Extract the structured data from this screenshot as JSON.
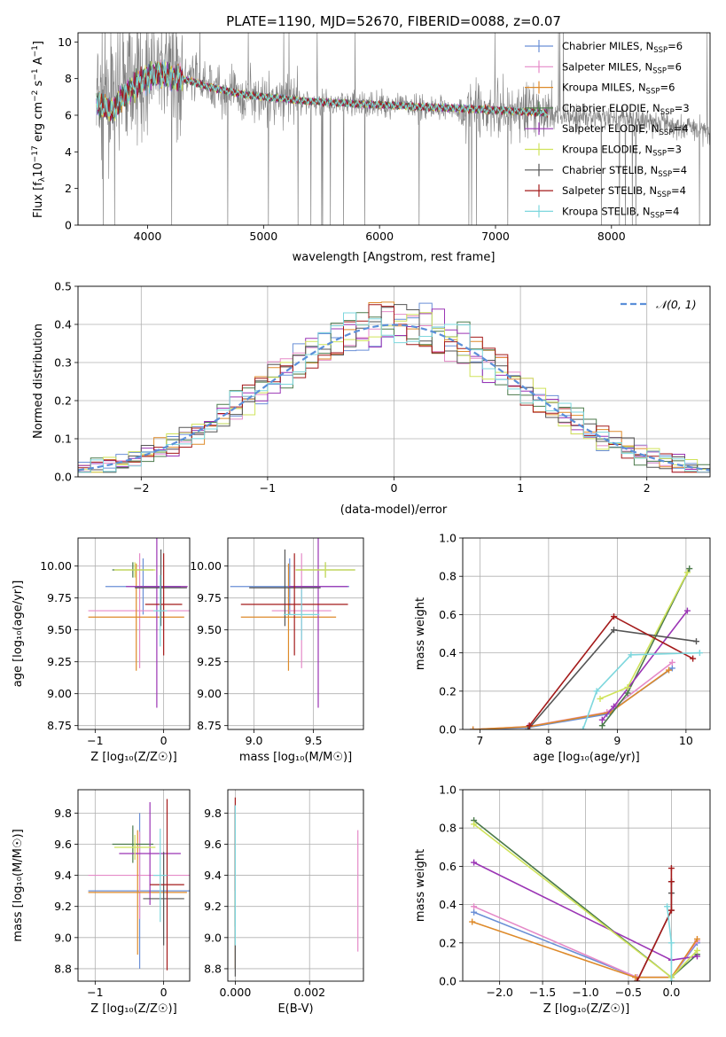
{
  "colors": {
    "chabrier_miles": "#6a8fd6",
    "salpeter_miles": "#e58ac8",
    "kroupa_miles": "#de8a2a",
    "chabrier_elodie": "#4b7a4b",
    "salpeter_elodie": "#9b35b5",
    "kroupa_elodie": "#cfe35a",
    "chabrier_stelib": "#555555",
    "salpeter_stelib": "#a41a1a",
    "kroupa_stelib": "#7dd7dd",
    "data": "#808080",
    "normal": "#5b8fd9"
  },
  "chart_data": [
    {
      "id": "spectrum",
      "type": "line",
      "title": "PLATE=1190, MJD=52670, FIBERID=0088, z=0.07",
      "xlabel": "wavelength [Angstrom, rest frame]",
      "ylabel_parts": [
        "Flux [f",
        "λ",
        "10",
        "−17",
        " erg cm",
        "−2",
        " s",
        "−1",
        " A",
        "−1",
        "]"
      ],
      "xlim": [
        3400,
        8850
      ],
      "ylim": [
        0,
        10.5
      ],
      "xticks": [
        4000,
        5000,
        6000,
        7000,
        8000
      ],
      "yticks": [
        0,
        2,
        4,
        6,
        8,
        10
      ],
      "legend_position": "top-right",
      "data_continuum": [
        [
          3600,
          7.0
        ],
        [
          3700,
          6.9
        ],
        [
          3800,
          7.6
        ],
        [
          3950,
          8.0
        ],
        [
          4100,
          8.5
        ],
        [
          4300,
          8.1
        ],
        [
          4500,
          7.6
        ],
        [
          4700,
          7.3
        ],
        [
          4900,
          7.05
        ],
        [
          5100,
          6.95
        ],
        [
          5300,
          6.8
        ],
        [
          5500,
          6.7
        ],
        [
          5800,
          6.6
        ],
        [
          6100,
          6.55
        ],
        [
          6400,
          6.45
        ],
        [
          6700,
          6.35
        ],
        [
          7000,
          6.25
        ],
        [
          7300,
          6.15
        ],
        [
          7600,
          6.0
        ],
        [
          8000,
          5.85
        ],
        [
          8400,
          5.6
        ],
        [
          8800,
          5.2
        ]
      ],
      "model_continuum": [
        [
          3560,
          6.6
        ],
        [
          3700,
          6.2
        ],
        [
          3800,
          7.1
        ],
        [
          3950,
          7.9
        ],
        [
          4100,
          8.3
        ],
        [
          4300,
          8.0
        ],
        [
          4500,
          7.6
        ],
        [
          4700,
          7.3
        ],
        [
          4900,
          7.05
        ],
        [
          5100,
          6.95
        ],
        [
          5300,
          6.8
        ],
        [
          5500,
          6.72
        ],
        [
          5800,
          6.62
        ],
        [
          6100,
          6.55
        ],
        [
          6400,
          6.45
        ],
        [
          6700,
          6.37
        ],
        [
          7000,
          6.28
        ],
        [
          7300,
          6.18
        ],
        [
          7450,
          6.12
        ]
      ],
      "legend": [
        {
          "prefix": "Chabrier MILES, N",
          "sub": "SSP",
          "suffix": "=6",
          "color_key": "chabrier_miles"
        },
        {
          "prefix": "Salpeter MILES, N",
          "sub": "SSP",
          "suffix": "=6",
          "color_key": "salpeter_miles"
        },
        {
          "prefix": "Kroupa MILES, N",
          "sub": "SSP",
          "suffix": "=6",
          "color_key": "kroupa_miles"
        },
        {
          "prefix": "Chabrier ELODIE, N",
          "sub": "SSP",
          "suffix": "=3",
          "color_key": "chabrier_elodie"
        },
        {
          "prefix": "Salpeter ELODIE, N",
          "sub": "SSP",
          "suffix": "=4",
          "color_key": "salpeter_elodie"
        },
        {
          "prefix": "Kroupa ELODIE, N",
          "sub": "SSP",
          "suffix": "=3",
          "color_key": "kroupa_elodie"
        },
        {
          "prefix": "Chabrier STELIB, N",
          "sub": "SSP",
          "suffix": "=4",
          "color_key": "chabrier_stelib"
        },
        {
          "prefix": "Salpeter STELIB, N",
          "sub": "SSP",
          "suffix": "=4",
          "color_key": "salpeter_stelib"
        },
        {
          "prefix": "Kroupa STELIB, N",
          "sub": "SSP",
          "suffix": "=4",
          "color_key": "kroupa_stelib"
        }
      ]
    },
    {
      "id": "residuals",
      "type": "line",
      "xlabel": "(data-model)/error",
      "ylabel": "Normed distribution",
      "xlim": [
        -2.5,
        2.5
      ],
      "ylim": [
        0,
        0.5
      ],
      "xticks": [
        -2,
        -1,
        0,
        1,
        2
      ],
      "yticks": [
        0.0,
        0.1,
        0.2,
        0.3,
        0.4,
        0.5
      ],
      "grid": true,
      "legend_position": "top-right",
      "legend": [
        {
          "label": "𝒩(0, 1)",
          "color_key": "normal"
        }
      ],
      "bin_width": 0.1
    },
    {
      "id": "age_vs_Z",
      "type": "scatter",
      "xlabel": "Z [log₁₀(Z/Z☉)]",
      "ylabel": "age  [log₁₀(age/yr)]",
      "xlim": [
        -1.25,
        0.38
      ],
      "ylim": [
        8.72,
        10.22
      ],
      "xticks": [
        -1,
        0
      ],
      "yticks": [
        8.75,
        9.0,
        9.25,
        9.5,
        9.75,
        10.0
      ],
      "grid": true,
      "points": [
        {
          "x": -0.3,
          "y": 9.84,
          "xerr": 0.55,
          "yerr": 0.22,
          "color_key": "chabrier_miles"
        },
        {
          "x": -0.35,
          "y": 9.65,
          "xerr": 0.75,
          "yerr": 0.45,
          "color_key": "salpeter_miles"
        },
        {
          "x": -0.4,
          "y": 9.6,
          "xerr": 0.7,
          "yerr": 0.42,
          "color_key": "kroupa_miles"
        },
        {
          "x": -0.45,
          "y": 9.97,
          "xerr": 0.3,
          "yerr": 0.06,
          "color_key": "chabrier_elodie"
        },
        {
          "x": -0.1,
          "y": 9.84,
          "xerr": 0.45,
          "yerr": 0.95,
          "color_key": "salpeter_elodie"
        },
        {
          "x": -0.42,
          "y": 9.97,
          "xerr": 0.3,
          "yerr": 0.06,
          "color_key": "kroupa_elodie"
        },
        {
          "x": -0.04,
          "y": 9.83,
          "xerr": 0.38,
          "yerr": 0.3,
          "color_key": "chabrier_stelib"
        },
        {
          "x": 0.0,
          "y": 9.7,
          "xerr": 0.27,
          "yerr": 0.4,
          "color_key": "salpeter_stelib"
        },
        {
          "x": -0.05,
          "y": 9.65,
          "xerr": 0.1,
          "yerr": 0.28,
          "color_key": "kroupa_stelib"
        }
      ]
    },
    {
      "id": "age_vs_mass",
      "type": "scatter",
      "xlabel": "mass [log₁₀(M/M☉)]",
      "xlim": [
        8.78,
        9.92
      ],
      "ylim": [
        8.72,
        10.22
      ],
      "xticks": [
        9.0,
        9.5
      ],
      "yticks": [
        8.75,
        9.0,
        9.25,
        9.5,
        9.75,
        10.0
      ],
      "grid": true,
      "points": [
        {
          "x": 9.3,
          "y": 9.84,
          "xerr": 0.5,
          "yerr": 0.22,
          "color_key": "chabrier_miles"
        },
        {
          "x": 9.4,
          "y": 9.65,
          "xerr": 0.25,
          "yerr": 0.45,
          "color_key": "salpeter_miles"
        },
        {
          "x": 9.29,
          "y": 9.6,
          "xerr": 0.4,
          "yerr": 0.42,
          "color_key": "kroupa_miles"
        },
        {
          "x": 9.6,
          "y": 9.97,
          "xerr": 0.25,
          "yerr": 0.06,
          "color_key": "chabrier_elodie"
        },
        {
          "x": 9.54,
          "y": 9.84,
          "xerr": 0.25,
          "yerr": 0.95,
          "color_key": "salpeter_elodie"
        },
        {
          "x": 9.6,
          "y": 9.97,
          "xerr": 0.25,
          "yerr": 0.06,
          "color_key": "kroupa_elodie"
        },
        {
          "x": 9.26,
          "y": 9.83,
          "xerr": 0.3,
          "yerr": 0.3,
          "color_key": "chabrier_stelib"
        },
        {
          "x": 9.34,
          "y": 9.7,
          "xerr": 0.45,
          "yerr": 0.4,
          "color_key": "salpeter_stelib"
        },
        {
          "x": 9.4,
          "y": 9.62,
          "xerr": 0.15,
          "yerr": 0.2,
          "color_key": "kroupa_stelib"
        }
      ]
    },
    {
      "id": "weight_vs_age",
      "type": "line",
      "xlabel": "age  [log₁₀(age/yr)]",
      "ylabel": "mass weight",
      "xlim": [
        6.75,
        10.35
      ],
      "ylim": [
        0,
        1
      ],
      "xticks": [
        7,
        8,
        9,
        10
      ],
      "yticks": [
        0.0,
        0.2,
        0.4,
        0.6,
        0.8,
        1.0
      ],
      "grid": true,
      "series": [
        {
          "color_key": "chabrier_miles",
          "x": [
            6.9,
            7.7,
            8.85,
            9.8
          ],
          "y": [
            0.0,
            0.01,
            0.08,
            0.32
          ]
        },
        {
          "color_key": "salpeter_miles",
          "x": [
            6.9,
            7.7,
            8.85,
            9.8
          ],
          "y": [
            0.0,
            0.015,
            0.09,
            0.35
          ]
        },
        {
          "color_key": "kroupa_miles",
          "x": [
            6.9,
            7.72,
            8.9,
            9.75
          ],
          "y": [
            0.0,
            0.015,
            0.09,
            0.31
          ]
        },
        {
          "color_key": "chabrier_elodie",
          "x": [
            8.78,
            9.15,
            10.05
          ],
          "y": [
            0.02,
            0.19,
            0.84
          ]
        },
        {
          "color_key": "salpeter_elodie",
          "x": [
            8.78,
            8.95,
            10.02
          ],
          "y": [
            0.05,
            0.12,
            0.62
          ]
        },
        {
          "color_key": "kroupa_elodie",
          "x": [
            8.75,
            9.15,
            10.02
          ],
          "y": [
            0.16,
            0.22,
            0.82
          ]
        },
        {
          "color_key": "chabrier_stelib",
          "x": [
            7.7,
            8.95,
            10.15
          ],
          "y": [
            0.0,
            0.52,
            0.46
          ]
        },
        {
          "color_key": "salpeter_stelib",
          "x": [
            7.72,
            8.95,
            10.1
          ],
          "y": [
            0.02,
            0.59,
            0.37
          ]
        },
        {
          "color_key": "kroupa_stelib",
          "x": [
            8.5,
            8.7,
            9.2,
            10.2
          ],
          "y": [
            0.0,
            0.2,
            0.39,
            0.4
          ]
        }
      ]
    },
    {
      "id": "mass_vs_Z",
      "type": "scatter",
      "xlabel": "Z [log₁₀(Z/Z☉)]",
      "ylabel": "mass [log₁₀(M/M☉)]",
      "xlim": [
        -1.25,
        0.38
      ],
      "ylim": [
        8.72,
        9.95
      ],
      "xticks": [
        -1,
        0
      ],
      "yticks": [
        8.8,
        9.0,
        9.2,
        9.4,
        9.6,
        9.8
      ],
      "grid": true,
      "points": [
        {
          "x": -0.35,
          "y": 9.3,
          "xerr": 0.75,
          "yerr": 0.5,
          "color_key": "chabrier_miles"
        },
        {
          "x": -0.35,
          "y": 9.4,
          "xerr": 0.75,
          "yerr": 0.28,
          "color_key": "salpeter_miles"
        },
        {
          "x": -0.38,
          "y": 9.29,
          "xerr": 0.72,
          "yerr": 0.4,
          "color_key": "kroupa_miles"
        },
        {
          "x": -0.45,
          "y": 9.6,
          "xerr": 0.3,
          "yerr": 0.12,
          "color_key": "chabrier_elodie"
        },
        {
          "x": -0.2,
          "y": 9.54,
          "xerr": 0.45,
          "yerr": 0.33,
          "color_key": "salpeter_elodie"
        },
        {
          "x": -0.42,
          "y": 9.58,
          "xerr": 0.3,
          "yerr": 0.08,
          "color_key": "kroupa_elodie"
        },
        {
          "x": 0.0,
          "y": 9.25,
          "xerr": 0.3,
          "yerr": 0.3,
          "color_key": "chabrier_stelib"
        },
        {
          "x": 0.05,
          "y": 9.34,
          "xerr": 0.25,
          "yerr": 0.55,
          "color_key": "salpeter_stelib"
        },
        {
          "x": -0.05,
          "y": 9.4,
          "xerr": 0.1,
          "yerr": 0.3,
          "color_key": "kroupa_stelib"
        }
      ]
    },
    {
      "id": "mass_vs_EBV",
      "type": "scatter",
      "xlabel": "E(B-V)",
      "xlim": [
        -0.0002,
        0.00345
      ],
      "ylim": [
        8.72,
        9.95
      ],
      "xticks": [
        0.0,
        0.002
      ],
      "xtick_labels": [
        "0.000",
        "0.002"
      ],
      "yticks": [
        8.8,
        9.0,
        9.2,
        9.4,
        9.6,
        9.8
      ],
      "grid": true,
      "points": [
        {
          "x": 0.0,
          "y": 9.3,
          "yerr": 0.5,
          "color_key": "chabrier_miles"
        },
        {
          "x": 0.0033,
          "y": 9.3,
          "yerr": 0.39,
          "color_key": "salpeter_miles"
        },
        {
          "x": 0.0,
          "y": 9.2,
          "yerr": 0.4,
          "color_key": "kroupa_miles"
        },
        {
          "x": 0.0,
          "y": 9.45,
          "yerr": 0.38,
          "color_key": "chabrier_elodie"
        },
        {
          "x": 0.0,
          "y": 9.55,
          "yerr": 0.3,
          "color_key": "salpeter_elodie"
        },
        {
          "x": 0.0,
          "y": 9.5,
          "yerr": 0.3,
          "color_key": "kroupa_elodie"
        },
        {
          "x": 0.0,
          "y": 9.3,
          "yerr": 0.55,
          "color_key": "chabrier_stelib"
        },
        {
          "x": 0.0,
          "y": 9.6,
          "yerr": 0.3,
          "color_key": "salpeter_stelib"
        },
        {
          "x": 0.0,
          "y": 9.4,
          "yerr": 0.45,
          "color_key": "kroupa_stelib"
        }
      ]
    },
    {
      "id": "weight_vs_Z",
      "type": "line",
      "xlabel": "Z [log₁₀(Z/Z☉)]",
      "ylabel": "mass weight",
      "xlim": [
        -2.43,
        0.45
      ],
      "ylim": [
        0,
        1
      ],
      "xticks": [
        -2.0,
        -1.5,
        -1.0,
        -0.5,
        0.0
      ],
      "yticks": [
        0.0,
        0.2,
        0.4,
        0.6,
        0.8,
        1.0
      ],
      "grid": true,
      "series": [
        {
          "color_key": "chabrier_miles",
          "x": [
            -2.3,
            -0.4,
            0.0,
            0.3
          ],
          "y": [
            0.36,
            0.02,
            0.02,
            0.2
          ]
        },
        {
          "color_key": "salpeter_miles",
          "x": [
            -2.3,
            -0.4,
            0.0,
            0.3
          ],
          "y": [
            0.39,
            0.02,
            0.02,
            0.21
          ]
        },
        {
          "color_key": "kroupa_miles",
          "x": [
            -2.32,
            -0.42,
            0.0,
            0.3
          ],
          "y": [
            0.31,
            0.02,
            0.02,
            0.22
          ]
        },
        {
          "color_key": "chabrier_elodie",
          "x": [
            -2.3,
            0.0,
            0.3
          ],
          "y": [
            0.84,
            0.02,
            0.14
          ]
        },
        {
          "color_key": "salpeter_elodie",
          "x": [
            -2.3,
            0.0,
            0.3
          ],
          "y": [
            0.62,
            0.11,
            0.13
          ]
        },
        {
          "color_key": "kroupa_elodie",
          "x": [
            -2.3,
            0.0,
            0.3
          ],
          "y": [
            0.82,
            0.02,
            0.16
          ]
        },
        {
          "color_key": "chabrier_stelib",
          "x": [
            -0.4,
            0.0,
            0.0,
            0.0
          ],
          "y": [
            0.0,
            0.37,
            0.46,
            0.52
          ]
        },
        {
          "color_key": "salpeter_stelib",
          "x": [
            -0.4,
            0.0,
            0.0,
            0.0
          ],
          "y": [
            0.0,
            0.37,
            0.52,
            0.59
          ]
        },
        {
          "color_key": "kroupa_stelib",
          "x": [
            -0.05,
            0.0,
            0.0
          ],
          "y": [
            0.39,
            0.2,
            0.0
          ]
        }
      ]
    }
  ]
}
